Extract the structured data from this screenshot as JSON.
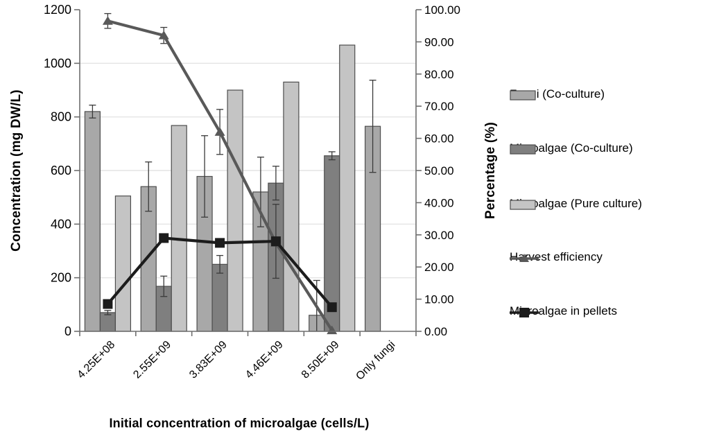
{
  "chart_data": {
    "type": "combo-bar-line",
    "title": "",
    "xlabel": "Initial concentration of microalgae (cells/L)",
    "grid": true,
    "legend_position": "right",
    "categories": [
      "4.25E+08",
      "2.55E+09",
      "3.83E+09",
      "4.46E+09",
      "8.50E+09",
      "Only fungi"
    ],
    "left_axis": {
      "label": "Concentration (mg DW/L)",
      "min": 0,
      "max": 1200,
      "step": 200
    },
    "right_axis": {
      "label": "Percentage (%)",
      "min": 0,
      "max": 100,
      "step": 10,
      "decimals": 2
    },
    "bar_series": [
      {
        "name": "Fungi (Co-culture)",
        "color": "#a8a8a8",
        "axis": "left",
        "values": [
          820,
          540,
          578,
          520,
          60,
          765
        ],
        "errors": [
          24,
          92,
          152,
          130,
          130,
          172
        ]
      },
      {
        "name": "Microalgae (Co-culture)",
        "color": "#7f7f7f",
        "axis": "left",
        "values": [
          70,
          168,
          250,
          553,
          655,
          null
        ],
        "errors": [
          8,
          38,
          33,
          63,
          15,
          null
        ]
      },
      {
        "name": "Microalgae (Pure culture)",
        "color": "#c4c4c4",
        "axis": "left",
        "values": [
          505,
          768,
          900,
          930,
          1068,
          null
        ],
        "errors": [
          0,
          0,
          0,
          0,
          0,
          null
        ]
      }
    ],
    "line_series": [
      {
        "name": "Harvest efficiency",
        "color": "#595959",
        "marker": "triangle",
        "axis": "right",
        "values": [
          96.5,
          92.0,
          62.0,
          27.5,
          0.3,
          null
        ],
        "errors": [
          2.3,
          2.5,
          7,
          0,
          0,
          null
        ]
      },
      {
        "name": "Microalgae in pellets",
        "color": "#1c1c1c",
        "marker": "square",
        "axis": "right",
        "values": [
          8.5,
          29.0,
          27.5,
          28.0,
          7.5,
          null
        ],
        "errors": [
          0,
          0,
          0,
          11.5,
          0,
          null
        ]
      }
    ],
    "style": {
      "gridline_color": "#e4e4e4",
      "axis_color": "#6e6e6e",
      "error_bar_color": "#3a3a3a",
      "bar_border_color": "#4d4d4d"
    }
  }
}
